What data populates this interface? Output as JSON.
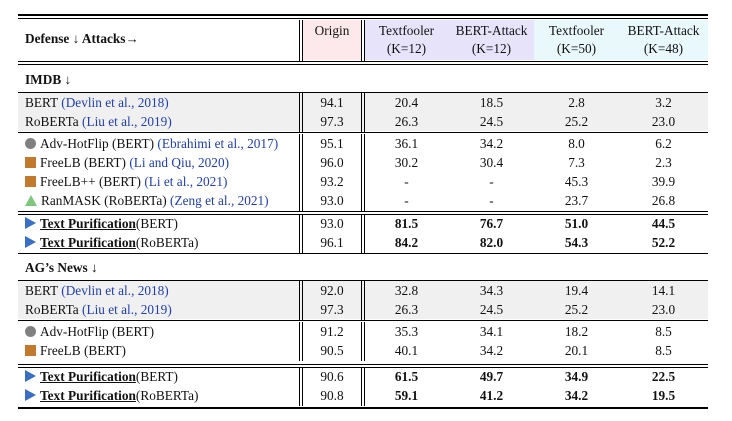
{
  "header": {
    "corner_label": "Defense ↓ Attacks→",
    "origin": "Origin",
    "attacks": [
      {
        "name": "Textfooler",
        "k": "(K=12)"
      },
      {
        "name": "BERT-Attack",
        "k": "(K=12)"
      },
      {
        "name": "Textfooler",
        "k": "(K=50)"
      },
      {
        "name": "BERT-Attack",
        "k": "(K=48)"
      }
    ]
  },
  "colors": {
    "origin_bg": "#fde8ec",
    "k12_bg": "#e7e3fb",
    "k50_bg": "#e9f8fb",
    "baseline_bg": "#f0f0f0",
    "citation": "#1f3fae"
  },
  "sections": [
    {
      "title": "IMDB ↓",
      "baselines": [
        {
          "model": "BERT",
          "cite": "(Devlin et al., 2018)",
          "values": [
            "94.1",
            "20.4",
            "18.5",
            "2.8",
            "3.2"
          ]
        },
        {
          "model": "RoBERTa",
          "cite": "(Liu et al., 2019)",
          "values": [
            "97.3",
            "26.3",
            "24.5",
            "25.2",
            "23.0"
          ]
        }
      ],
      "defenses": [
        {
          "marker": "circle",
          "model": "Adv-HotFlip (BERT)",
          "cite": "(Ebrahimi et al., 2017)",
          "values": [
            "95.1",
            "36.1",
            "34.2",
            "8.0",
            "6.2"
          ]
        },
        {
          "marker": "square",
          "model": "FreeLB (BERT)",
          "cite": "(Li and Qiu, 2020)",
          "values": [
            "96.0",
            "30.2",
            "30.4",
            "7.3",
            "2.3"
          ]
        },
        {
          "marker": "square",
          "model": "FreeLB++ (BERT)",
          "cite": "(Li et al., 2021)",
          "values": [
            "93.2",
            "-",
            "-",
            "45.3",
            "39.9"
          ]
        },
        {
          "marker": "triangle",
          "model": "RanMASK (RoBERTa)",
          "cite": "(Zeng et al., 2021)",
          "values": [
            "93.0",
            "-",
            "-",
            "23.7",
            "26.8"
          ]
        }
      ],
      "ours": [
        {
          "method": "Text Purification",
          "base": "(BERT)",
          "values": [
            "93.0",
            "81.5",
            "76.7",
            "51.0",
            "44.5"
          ]
        },
        {
          "method": "Text Purification",
          "base": "(RoBERTa)",
          "values": [
            "96.1",
            "84.2",
            "82.0",
            "54.3",
            "52.2"
          ]
        }
      ]
    },
    {
      "title": "AG’s News ↓",
      "baselines": [
        {
          "model": "BERT",
          "cite": "(Devlin et al., 2018)",
          "values": [
            "92.0",
            "32.8",
            "34.3",
            "19.4",
            "14.1"
          ]
        },
        {
          "model": "RoBERTa",
          "cite": "(Liu et al., 2019)",
          "values": [
            "97.3",
            "26.3",
            "24.5",
            "25.2",
            "23.0"
          ]
        }
      ],
      "defenses": [
        {
          "marker": "circle",
          "model": "Adv-HotFlip (BERT)",
          "cite": "",
          "values": [
            "91.2",
            "35.3",
            "34.1",
            "18.2",
            "8.5"
          ]
        },
        {
          "marker": "square",
          "model": "FreeLB (BERT)",
          "cite": "",
          "values": [
            "90.5",
            "40.1",
            "34.2",
            "20.1",
            "8.5"
          ]
        }
      ],
      "ours": [
        {
          "method": "Text Purification",
          "base": "(BERT)",
          "values": [
            "90.6",
            "61.5",
            "49.7",
            "34.9",
            "22.5"
          ]
        },
        {
          "method": "Text Purification",
          "base": "(RoBERTa)",
          "values": [
            "90.8",
            "59.1",
            "41.2",
            "34.2",
            "19.5"
          ]
        }
      ]
    }
  ]
}
